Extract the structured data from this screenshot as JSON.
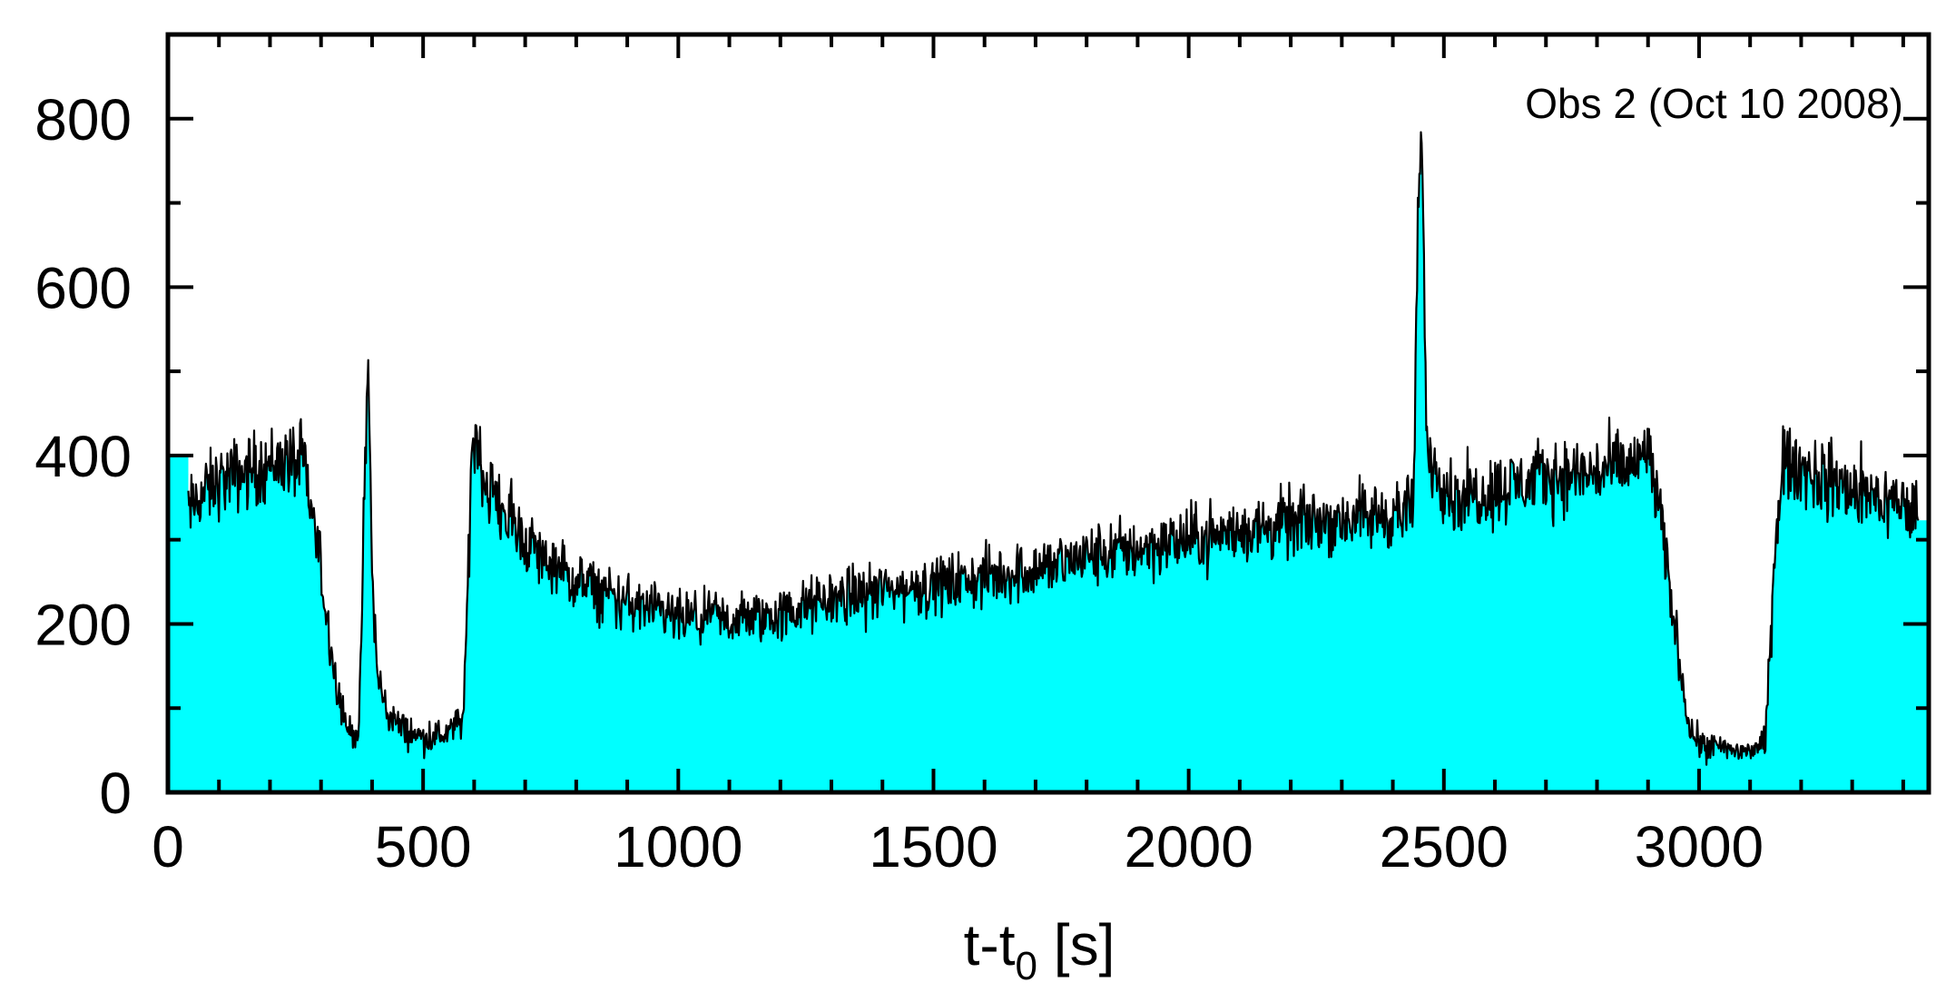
{
  "chart_data": {
    "type": "area",
    "title": "",
    "annotation": "Obs 2 (Oct 10 2008)",
    "xlabel": {
      "main": "t-t",
      "sub": "0",
      "unit": " [s]"
    },
    "ylabel": "",
    "xlim": [
      0,
      3450
    ],
    "ylim": [
      0,
      900
    ],
    "x_ticks": [
      0,
      500,
      1000,
      1500,
      2000,
      2500,
      3000
    ],
    "y_ticks": [
      0,
      200,
      400,
      600,
      800
    ],
    "x_tick_labels": [
      "0",
      "500",
      "1000",
      "1500",
      "2000",
      "2500",
      "3000"
    ],
    "y_tick_labels": [
      "0",
      "200",
      "400",
      "600",
      "800"
    ],
    "x_minor_step": 100,
    "y_minor_step": 100,
    "legend": "none",
    "grid": false,
    "fill_color": "#00FFFF",
    "line_color": "#000000",
    "x_data_start": 40,
    "x_data_end": 3430,
    "series": [
      {
        "x": [
          40,
          60,
          100,
          150,
          200,
          240,
          270,
          300,
          330,
          355,
          375,
          385,
          393,
          400,
          410,
          430,
          460,
          500,
          550,
          580,
          595,
          605,
          620,
          650,
          700,
          750,
          800,
          900,
          1000,
          1100,
          1200,
          1300,
          1400,
          1500,
          1600,
          1700,
          1800,
          1900,
          2000,
          2100,
          2200,
          2300,
          2400,
          2440,
          2450,
          2458,
          2465,
          2480,
          2520,
          2600,
          2700,
          2800,
          2880,
          2900,
          2920,
          2950,
          2980,
          3000,
          3050,
          3100,
          3130,
          3150,
          3165,
          3200,
          3250,
          3300,
          3350,
          3400,
          3430
        ],
        "values": [
          330,
          350,
          370,
          380,
          390,
          395,
          380,
          260,
          130,
          70,
          75,
          350,
          510,
          260,
          140,
          95,
          75,
          65,
          70,
          90,
          400,
          430,
          370,
          340,
          300,
          270,
          250,
          225,
          205,
          205,
          210,
          230,
          240,
          245,
          255,
          265,
          280,
          290,
          300,
          310,
          320,
          325,
          330,
          335,
          680,
          790,
          430,
          390,
          350,
          360,
          375,
          380,
          390,
          410,
          340,
          210,
          80,
          60,
          50,
          50,
          60,
          300,
          390,
          385,
          370,
          360,
          350,
          340,
          330
        ]
      }
    ]
  }
}
